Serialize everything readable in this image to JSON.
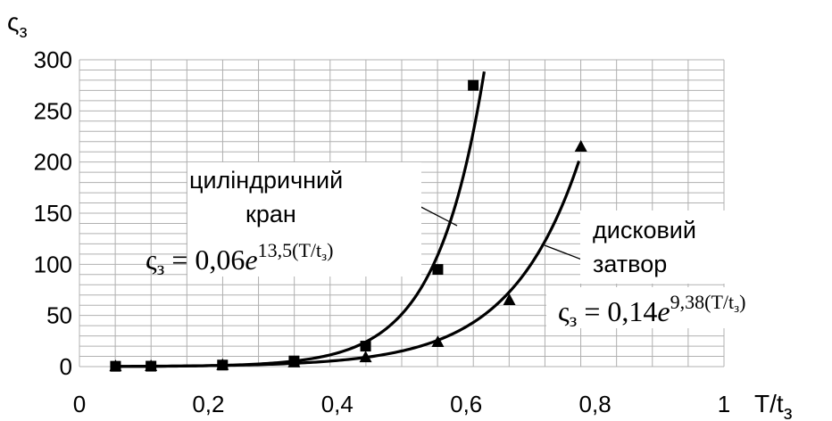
{
  "chart_data": {
    "type": "scatter",
    "xlabel": "T/t",
    "xlabel_sub": "з",
    "ylabel": "ς",
    "ylabel_sub": "з",
    "xlim": [
      0,
      1
    ],
    "ylim": [
      0,
      300
    ],
    "x_ticks": [
      0,
      0.2,
      0.4,
      0.6,
      0.8,
      1
    ],
    "x_tick_labels": [
      "0",
      "0,2",
      "0,4",
      "0,6",
      "0,8",
      "1"
    ],
    "y_ticks": [
      0,
      50,
      100,
      150,
      200,
      250,
      300
    ],
    "y_tick_labels": [
      "0",
      "50",
      "100",
      "150",
      "200",
      "250",
      "300"
    ],
    "grid": true,
    "series": [
      {
        "name": "циліндричний кран",
        "marker": "square",
        "color": "#000000",
        "x": [
          0.056,
          0.111,
          0.222,
          0.333,
          0.444,
          0.556,
          0.611
        ],
        "y": [
          0.3,
          0.4,
          1.5,
          5.5,
          20,
          95,
          275
        ],
        "fit": {
          "a": 0.06,
          "b": 13.5,
          "x_start": 0.05,
          "x_end": 0.628
        }
      },
      {
        "name": "дисковий затвор",
        "marker": "triangle",
        "color": "#000000",
        "x": [
          0.056,
          0.111,
          0.222,
          0.333,
          0.444,
          0.556,
          0.667,
          0.778
        ],
        "y": [
          0.3,
          0.4,
          1.5,
          4,
          9,
          24,
          65,
          215
        ],
        "fit": {
          "a": 0.14,
          "b": 9.38,
          "x_start": 0.05,
          "x_end": 0.775
        }
      }
    ],
    "annotations": {
      "cylinder": {
        "label_line1": "циліндричний",
        "label_line2": "кран",
        "formula_lhs": "ς",
        "formula_lhs_sub": "з",
        "formula_eq": " = 0,06",
        "formula_e": "e",
        "formula_exp": "13,5",
        "formula_paren": "(T/t",
        "formula_paren_sub": "з",
        "formula_paren_close": ")"
      },
      "disc": {
        "label_line1": "дисковий",
        "label_line2": "затвор",
        "formula_lhs": "ς",
        "formula_lhs_sub": "з",
        "formula_eq": " = 0,14",
        "formula_e": "e",
        "formula_exp": "9,38",
        "formula_paren": "(T/t",
        "formula_paren_sub": "з",
        "formula_paren_close": ")"
      }
    }
  }
}
